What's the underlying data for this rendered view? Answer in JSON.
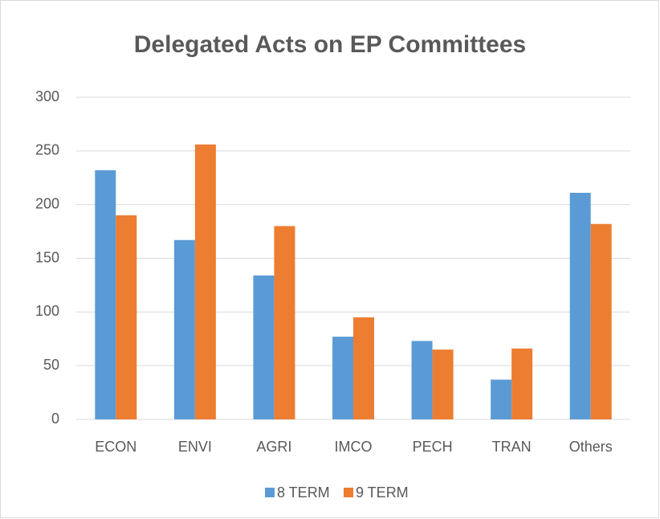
{
  "chart_data": {
    "type": "bar",
    "title": "Delegated Acts on EP Committees",
    "categories": [
      "ECON",
      "ENVI",
      "AGRI",
      "IMCO",
      "PECH",
      "TRAN",
      "Others"
    ],
    "series": [
      {
        "name": "8 TERM",
        "color": "#5b9bd5",
        "values": [
          232,
          167,
          134,
          77,
          73,
          37,
          211
        ]
      },
      {
        "name": "9 TERM",
        "color": "#ed7d31",
        "values": [
          190,
          256,
          180,
          95,
          65,
          66,
          182
        ]
      }
    ],
    "ylim": [
      0,
      300
    ],
    "yticks": [
      0,
      50,
      100,
      150,
      200,
      250,
      300
    ],
    "grid": true,
    "legend": "bottom"
  }
}
